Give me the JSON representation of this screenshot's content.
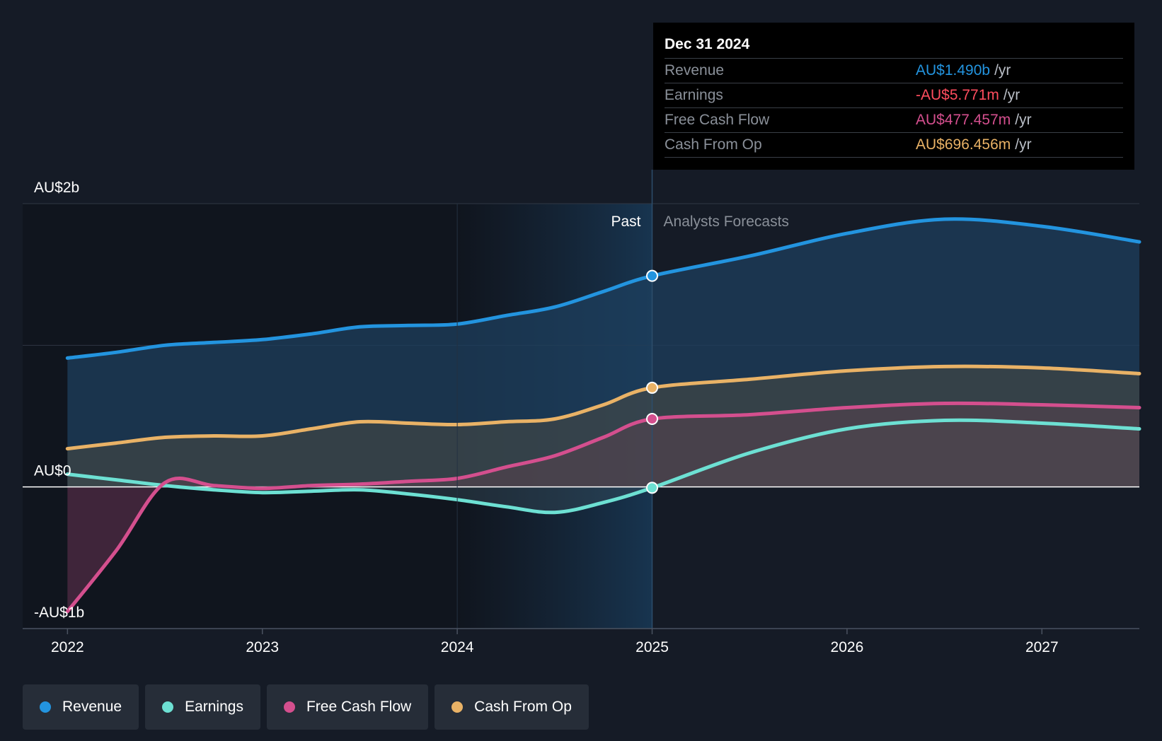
{
  "colors": {
    "background": "#151b26",
    "revenue": "#2394df",
    "earnings": "#6de0d3",
    "free_cash_flow": "#d44f8e",
    "cash_from_op": "#e9b266",
    "earnings_tooltip": "#ff4d5e"
  },
  "tooltip": {
    "title": "Dec 31 2024",
    "rows": [
      {
        "label": "Revenue",
        "value": "AU$1.490b",
        "unit": "/yr"
      },
      {
        "label": "Earnings",
        "value": "-AU$5.771m",
        "unit": "/yr"
      },
      {
        "label": "Free Cash Flow",
        "value": "AU$477.457m",
        "unit": "/yr"
      },
      {
        "label": "Cash From Op",
        "value": "AU$696.456m",
        "unit": "/yr"
      }
    ]
  },
  "legend": [
    {
      "label": "Revenue",
      "color_key": "revenue"
    },
    {
      "label": "Earnings",
      "color_key": "earnings"
    },
    {
      "label": "Free Cash Flow",
      "color_key": "free_cash_flow"
    },
    {
      "label": "Cash From Op",
      "color_key": "cash_from_op"
    }
  ],
  "chart_data": {
    "type": "line",
    "title": "",
    "xlabel": "",
    "ylabel": "",
    "x_ticks": [
      "2022",
      "2023",
      "2024",
      "2025",
      "2026",
      "2027"
    ],
    "x_tick_values": [
      2022,
      2023,
      2024,
      2025,
      2026,
      2027
    ],
    "xlim": [
      2021.77,
      2027.5
    ],
    "y_tick_labels": [
      "AU$2b",
      "AU$0",
      "-AU$1b"
    ],
    "y_tick_values": [
      2,
      0,
      -1
    ],
    "ylim": [
      -1,
      2
    ],
    "gridline_values": [
      2,
      1,
      0
    ],
    "past_label": "Past",
    "forecast_label": "Analysts Forecasts",
    "divider_x": 2025,
    "highlight_start_x": 2024,
    "series": [
      {
        "name": "Revenue",
        "color_key": "revenue",
        "x": [
          2022,
          2022.25,
          2022.5,
          2022.75,
          2023,
          2023.25,
          2023.5,
          2023.75,
          2024,
          2024.25,
          2024.5,
          2024.75,
          2025,
          2025.5,
          2026,
          2026.5,
          2027,
          2027.5
        ],
        "y": [
          0.91,
          0.95,
          1.0,
          1.02,
          1.04,
          1.08,
          1.13,
          1.14,
          1.15,
          1.21,
          1.27,
          1.38,
          1.49,
          1.63,
          1.79,
          1.89,
          1.84,
          1.73
        ]
      },
      {
        "name": "Earnings",
        "color_key": "earnings",
        "x": [
          2022,
          2022.25,
          2022.5,
          2022.75,
          2023,
          2023.25,
          2023.5,
          2023.75,
          2024,
          2024.25,
          2024.5,
          2024.75,
          2025,
          2025.5,
          2026,
          2026.5,
          2027,
          2027.5
        ],
        "y": [
          0.09,
          0.05,
          0.01,
          -0.02,
          -0.04,
          -0.03,
          -0.02,
          -0.05,
          -0.09,
          -0.14,
          -0.18,
          -0.11,
          -0.006,
          0.24,
          0.41,
          0.47,
          0.45,
          0.41
        ]
      },
      {
        "name": "Free Cash Flow",
        "color_key": "free_cash_flow",
        "x": [
          2022,
          2022.25,
          2022.5,
          2022.75,
          2023,
          2023.25,
          2023.5,
          2023.75,
          2024,
          2024.25,
          2024.5,
          2024.75,
          2025,
          2025.5,
          2026,
          2026.5,
          2027,
          2027.5
        ],
        "y": [
          -0.88,
          -0.45,
          0.03,
          0.01,
          -0.01,
          0.01,
          0.02,
          0.04,
          0.06,
          0.14,
          0.22,
          0.35,
          0.48,
          0.51,
          0.56,
          0.59,
          0.58,
          0.56
        ]
      },
      {
        "name": "Cash From Op",
        "color_key": "cash_from_op",
        "x": [
          2022,
          2022.25,
          2022.5,
          2022.75,
          2023,
          2023.25,
          2023.5,
          2023.75,
          2024,
          2024.25,
          2024.5,
          2024.75,
          2025,
          2025.5,
          2026,
          2026.5,
          2027,
          2027.5
        ],
        "y": [
          0.27,
          0.31,
          0.35,
          0.36,
          0.36,
          0.41,
          0.46,
          0.45,
          0.44,
          0.46,
          0.48,
          0.58,
          0.7,
          0.76,
          0.82,
          0.85,
          0.84,
          0.8
        ]
      }
    ]
  }
}
